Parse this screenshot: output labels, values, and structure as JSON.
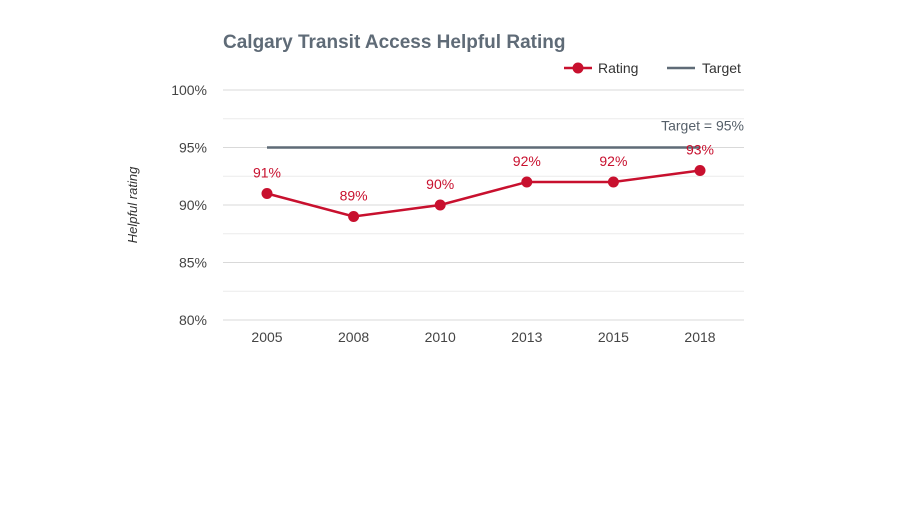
{
  "chart_data": {
    "type": "line",
    "title": "Calgary Transit Access Helpful Rating",
    "ylabel": "Helpful rating",
    "xlabel": "",
    "categories": [
      "2005",
      "2008",
      "2010",
      "2013",
      "2015",
      "2018"
    ],
    "ylim": [
      80,
      100
    ],
    "yticks": [
      80,
      85,
      90,
      95,
      100
    ],
    "ytick_labels": [
      "80%",
      "85%",
      "90%",
      "95%",
      "100%"
    ],
    "grid": true,
    "legend_position": "top-right",
    "series": [
      {
        "name": "Rating",
        "values": [
          91,
          89,
          90,
          92,
          92,
          93
        ],
        "labels": [
          "91%",
          "89%",
          "90%",
          "92%",
          "92%",
          "93%"
        ],
        "color": "#c8102e"
      },
      {
        "name": "Target",
        "values": [
          95,
          95,
          95,
          95,
          95,
          95
        ],
        "color": "#5f6b77"
      }
    ],
    "annotations": [
      {
        "text": "Target = 95%"
      }
    ]
  }
}
